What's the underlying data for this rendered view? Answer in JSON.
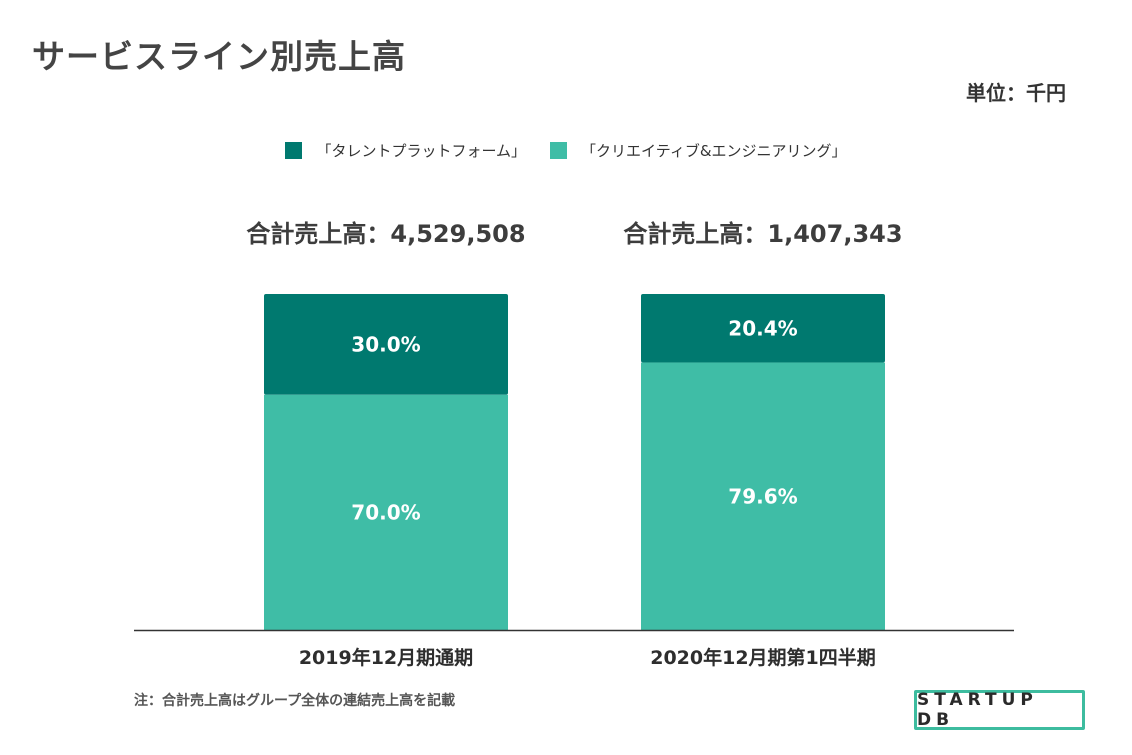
{
  "header": {
    "title": "サービスライン別売上高",
    "unit": "単位：千円"
  },
  "colors": {
    "platform": "#00796f",
    "creative": "#3fbda6",
    "axis": "#333333",
    "label": "#ffffff",
    "logo_border": "#3dbc9f"
  },
  "footer": {
    "note": "注：合計売上高はグループ全体の連結売上高を記載",
    "logo": "STARTUP DB"
  },
  "chart_data": {
    "type": "bar",
    "stacked": true,
    "percent": true,
    "title": "サービスライン別売上高",
    "unit": "単位：千円",
    "categories": [
      "2019年12月期通期",
      "2020年12月期第1四半期"
    ],
    "totals": [
      "合計売上高：4,529,508",
      "合計売上高：1,407,343"
    ],
    "series": [
      {
        "name": "「タレントプラットフォーム」",
        "values": [
          30.0,
          20.4
        ],
        "labels": [
          "30.0%",
          "20.4%"
        ]
      },
      {
        "name": "「クリエイティブ&エンジニアリング」",
        "values": [
          70.0,
          79.6
        ],
        "labels": [
          "70.0%",
          "79.6%"
        ]
      }
    ],
    "ylim": [
      0,
      100
    ],
    "legend": "top-center"
  }
}
